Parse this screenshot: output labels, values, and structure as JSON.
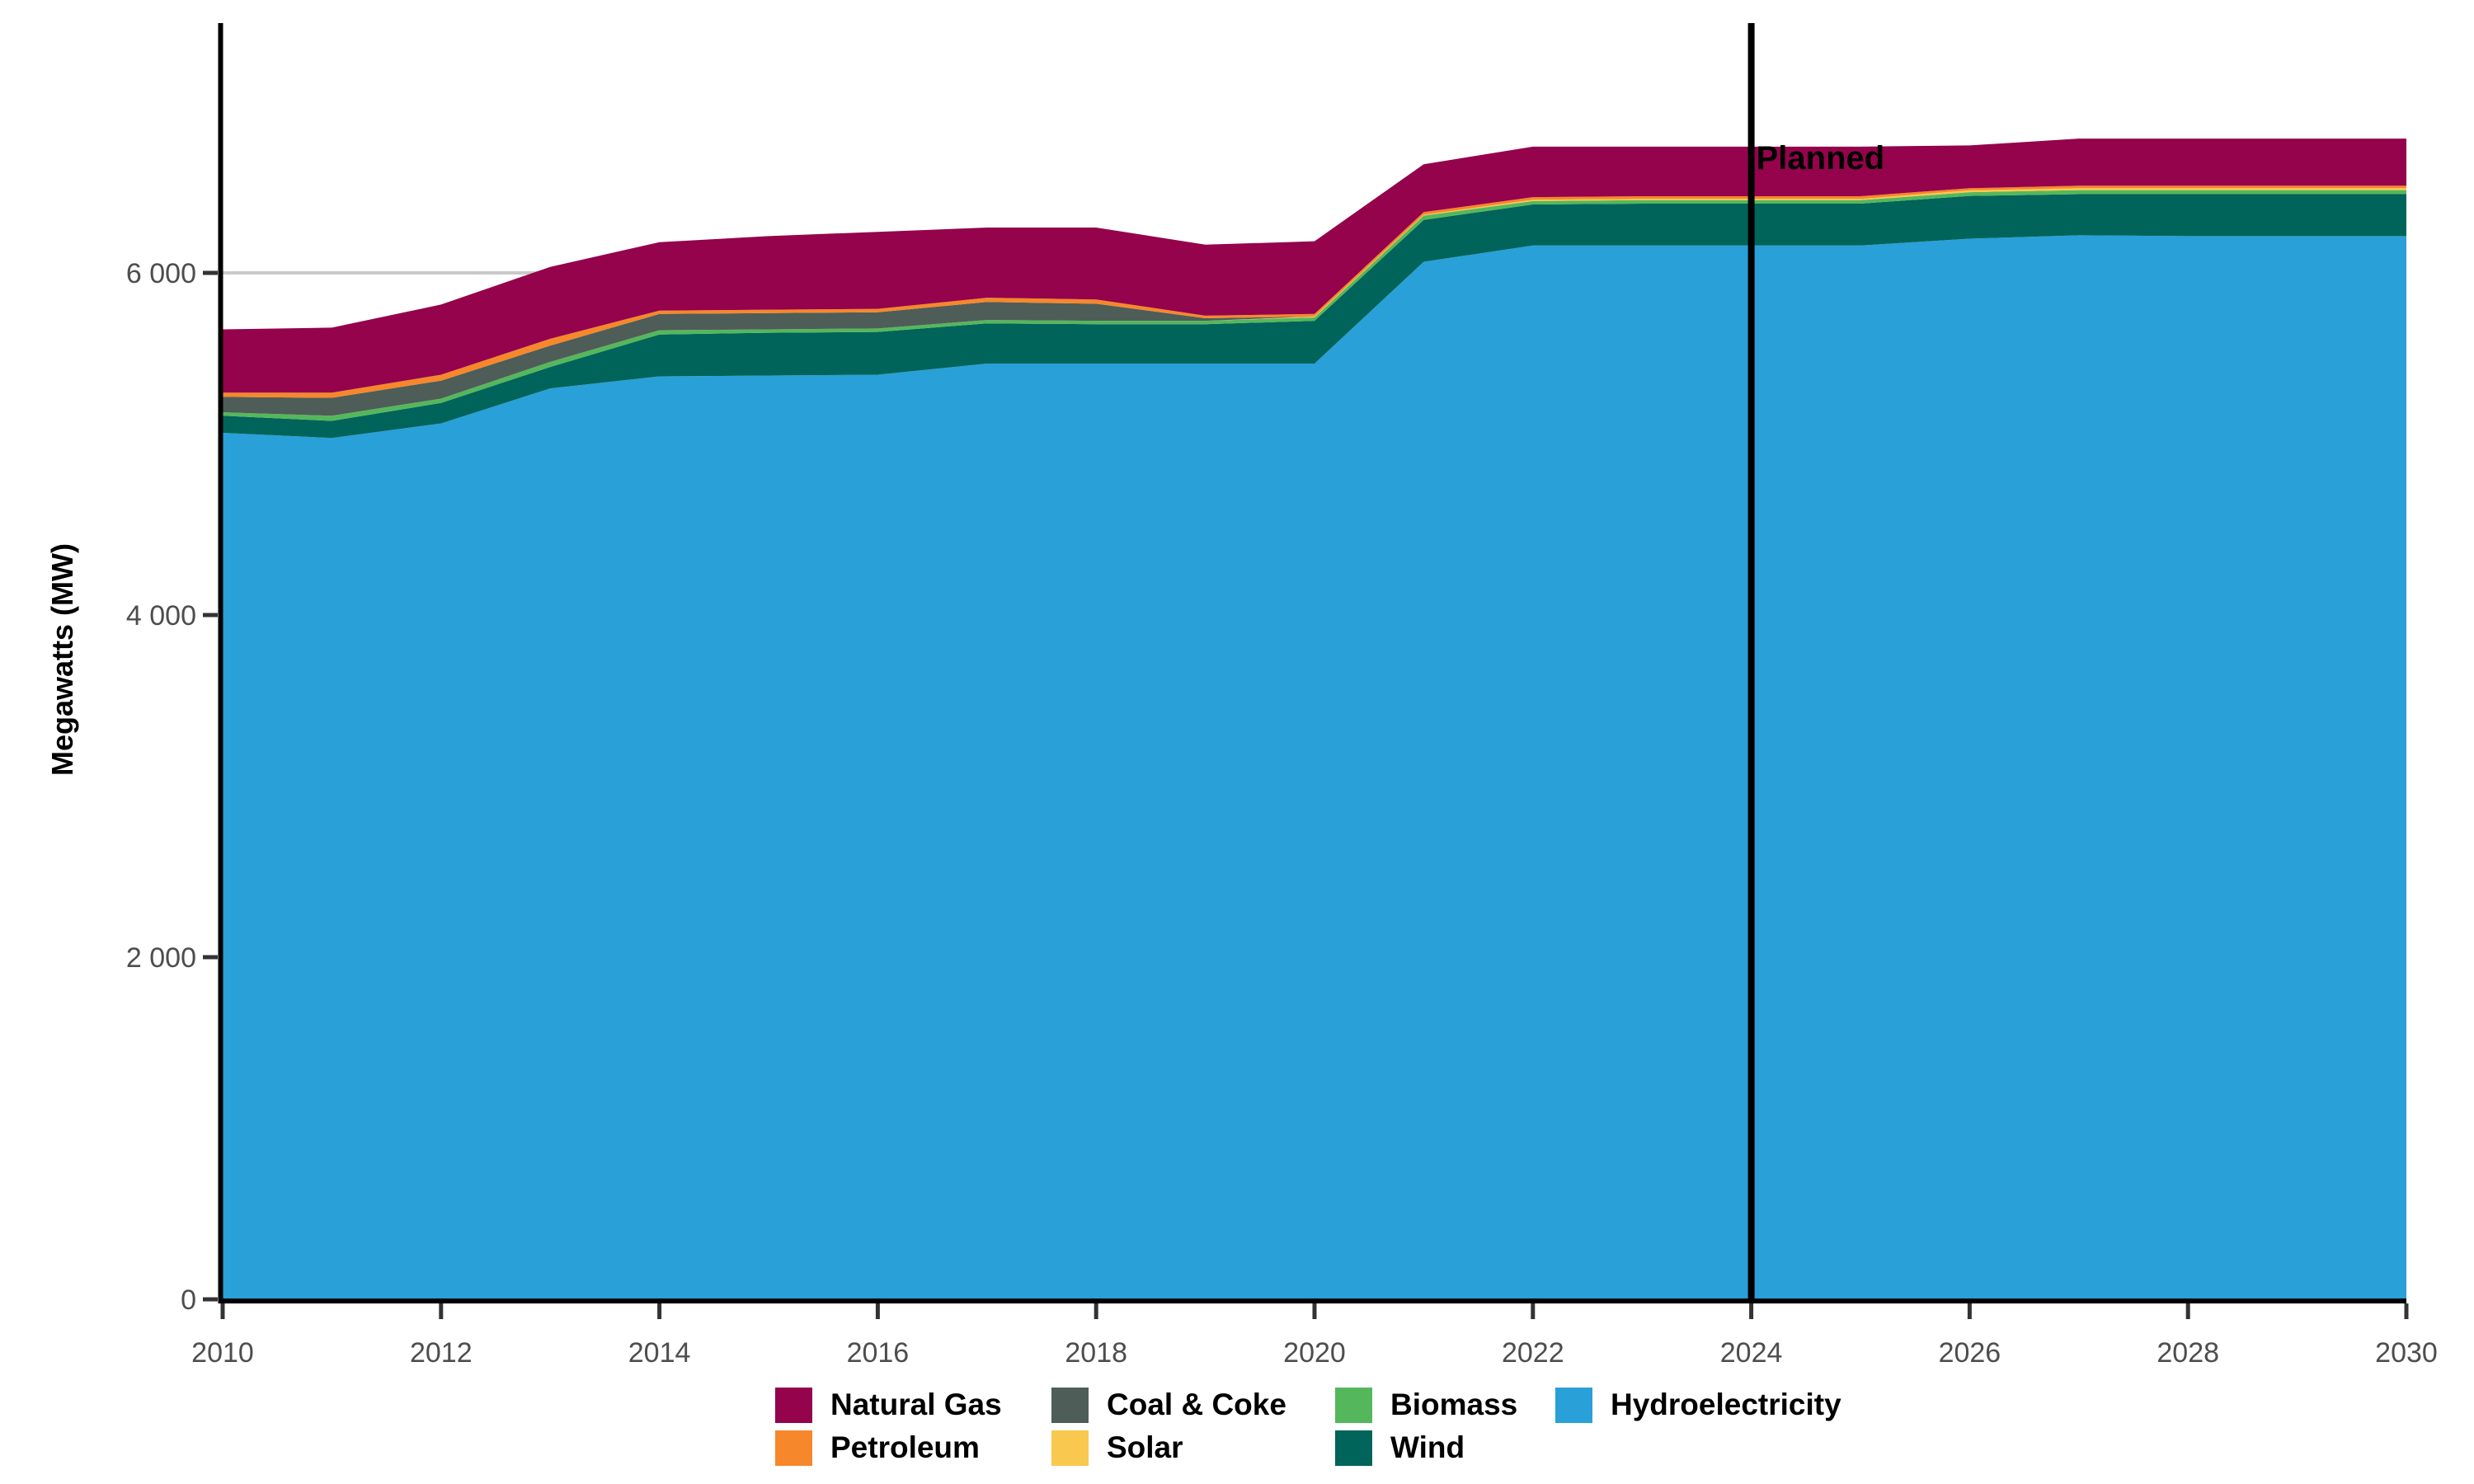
{
  "chart_data": {
    "type": "area",
    "stacked": true,
    "title": "",
    "xlabel": "",
    "ylabel": "Megawatts (MW)",
    "xlim": [
      2010,
      2030
    ],
    "ylim": [
      0,
      7470
    ],
    "grid": "single horizontal gridline at 6000",
    "gridline_values": [
      6000
    ],
    "x": [
      2010,
      2011,
      2012,
      2013,
      2014,
      2015,
      2016,
      2017,
      2018,
      2019,
      2020,
      2021,
      2022,
      2023,
      2024,
      2025,
      2026,
      2027,
      2028,
      2029,
      2030
    ],
    "x_ticks": [
      {
        "value": 2010,
        "label": "2010"
      },
      {
        "value": 2012,
        "label": "2012"
      },
      {
        "value": 2014,
        "label": "2014"
      },
      {
        "value": 2016,
        "label": "2016"
      },
      {
        "value": 2018,
        "label": "2018"
      },
      {
        "value": 2020,
        "label": "2020"
      },
      {
        "value": 2022,
        "label": "2022"
      },
      {
        "value": 2024,
        "label": "2024"
      },
      {
        "value": 2026,
        "label": "2026"
      },
      {
        "value": 2028,
        "label": "2028"
      },
      {
        "value": 2030,
        "label": "2030"
      }
    ],
    "y_ticks": [
      {
        "value": 0,
        "label": "0"
      },
      {
        "value": 2000,
        "label": "2 000"
      },
      {
        "value": 4000,
        "label": "4 000"
      },
      {
        "value": 6000,
        "label": "6 000"
      }
    ],
    "series": [
      {
        "name": "Hydroelectricity",
        "color": "#29A0D8",
        "values": [
          5065,
          5035,
          5120,
          5325,
          5395,
          5400,
          5405,
          5470,
          5470,
          5470,
          5470,
          6065,
          6160,
          6160,
          6160,
          6160,
          6200,
          6220,
          6215,
          6215,
          6215
        ]
      },
      {
        "name": "Wind",
        "color": "#00645A",
        "values": [
          100,
          100,
          120,
          125,
          245,
          250,
          250,
          235,
          230,
          230,
          250,
          245,
          240,
          245,
          245,
          245,
          250,
          240,
          245,
          245,
          245
        ]
      },
      {
        "name": "Biomass",
        "color": "#55B75C",
        "values": [
          20,
          30,
          25,
          30,
          25,
          20,
          20,
          20,
          20,
          20,
          20,
          25,
          20,
          20,
          20,
          20,
          22,
          24,
          24,
          24,
          24
        ]
      },
      {
        "name": "Solar",
        "color": "#F9C84E",
        "values": [
          0,
          0,
          0,
          0,
          0,
          0,
          0,
          0,
          0,
          0,
          5,
          5,
          8,
          8,
          8,
          8,
          11,
          11,
          11,
          11,
          11
        ]
      },
      {
        "name": "Coal & Coke",
        "color": "#4E5D57",
        "values": [
          90,
          105,
          105,
          95,
          95,
          95,
          95,
          105,
          100,
          15,
          0,
          0,
          0,
          0,
          0,
          0,
          0,
          0,
          0,
          0,
          0
        ]
      },
      {
        "name": "Petroleum",
        "color": "#F6872B",
        "values": [
          25,
          30,
          35,
          40,
          20,
          20,
          20,
          25,
          25,
          15,
          15,
          15,
          15,
          15,
          15,
          15,
          12,
          15,
          15,
          15,
          15
        ]
      },
      {
        "name": "Natural Gas",
        "color": "#94034B",
        "values": [
          370,
          380,
          410,
          420,
          400,
          430,
          450,
          410,
          420,
          415,
          425,
          280,
          295,
          290,
          290,
          290,
          250,
          275,
          275,
          275,
          275
        ]
      }
    ],
    "annotation": {
      "label": "Planned",
      "x": 2024
    },
    "legend_position": "bottom"
  },
  "legend": {
    "rows": [
      [
        {
          "label": "Natural Gas",
          "color": "#94034B"
        },
        {
          "label": "Coal & Coke",
          "color": "#4E5D57"
        },
        {
          "label": "Biomass",
          "color": "#55B75C"
        },
        {
          "label": "Hydroelectricity",
          "color": "#29A0D8"
        }
      ],
      [
        {
          "label": "Petroleum",
          "color": "#F6872B"
        },
        {
          "label": "Solar",
          "color": "#F9C84E"
        },
        {
          "label": "Wind",
          "color": "#00645A"
        }
      ]
    ]
  },
  "style": {
    "gridline_color": "#C9C9C9",
    "axis_color": "#000000",
    "tick_color": "#333333",
    "tick_label_color": "#4D4D4D",
    "background": "#FFFFFF"
  }
}
